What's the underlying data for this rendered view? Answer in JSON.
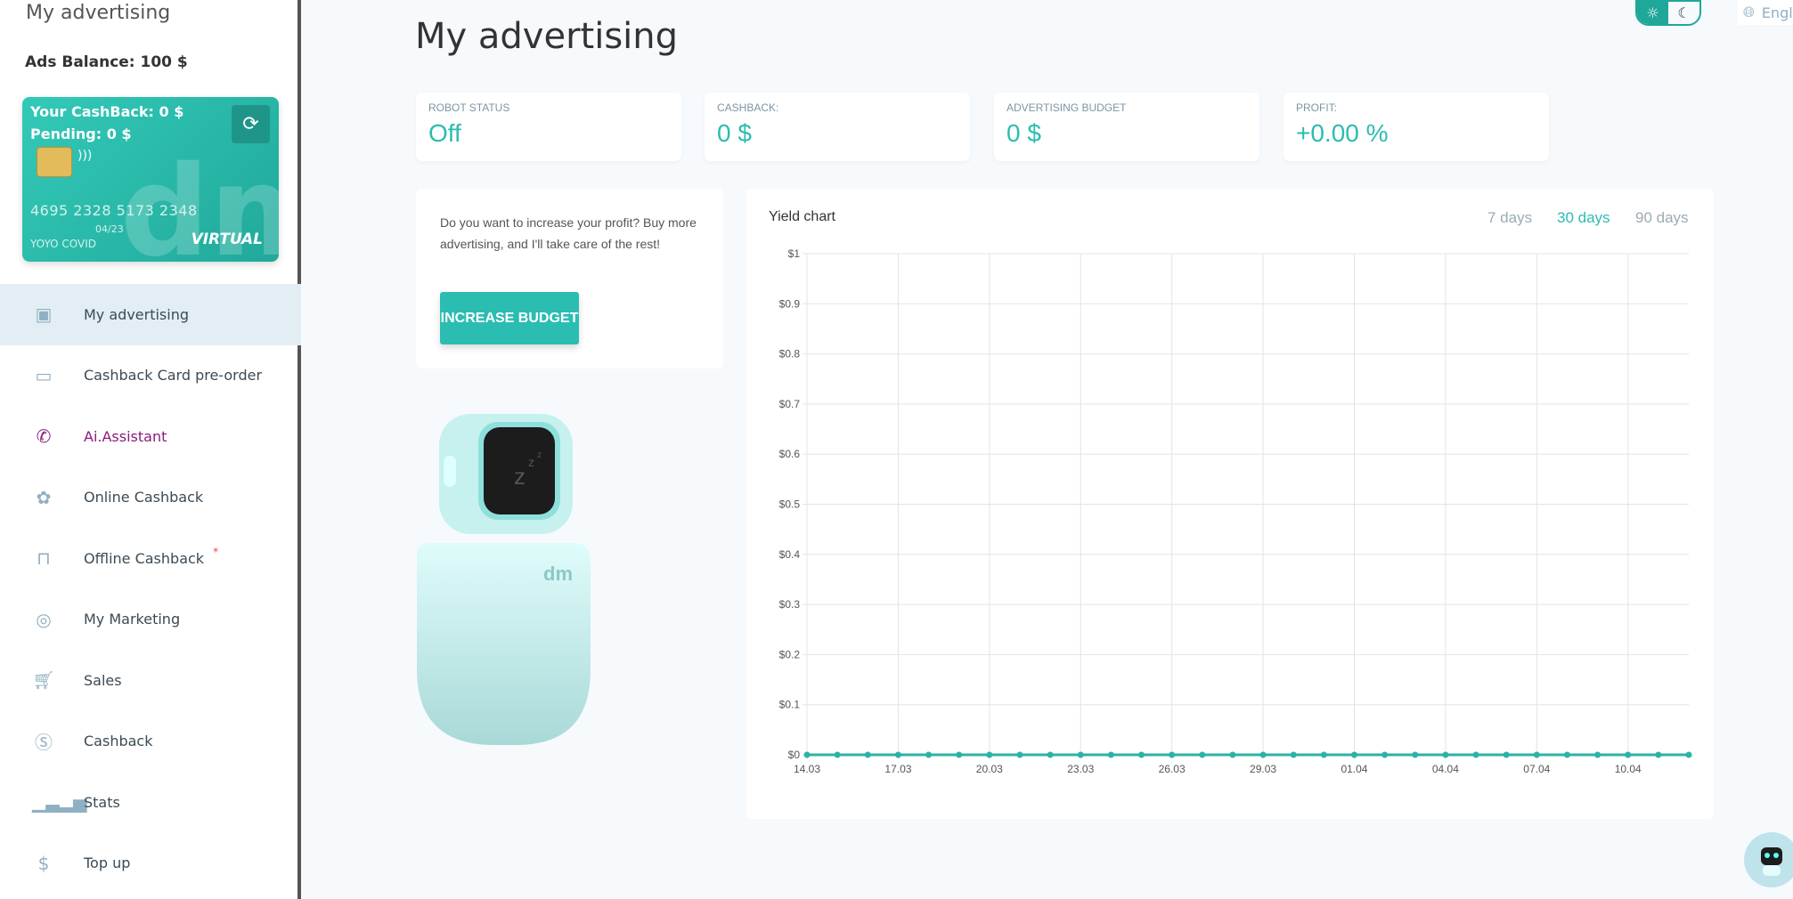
{
  "sidebar": {
    "title": "My advertising",
    "ads_balance": "Ads Balance: 100 $",
    "card": {
      "cashback": "Your CashBack: 0 $",
      "pending": "Pending: 0 $",
      "number": "4695 2328 5173 2348",
      "expiry": "04/23",
      "holder": "YOYO COVID",
      "type": "VIRTUAL",
      "logo": "dm"
    },
    "items": [
      {
        "label": "My advertising",
        "icon": "id-badge-icon"
      },
      {
        "label": "Cashback Card pre-order",
        "icon": "credit-card-icon"
      },
      {
        "label": "Ai.Assistant",
        "icon": "phone-icon"
      },
      {
        "label": "Online Cashback",
        "icon": "percent-badge-icon"
      },
      {
        "label": "Offline Cashback",
        "icon": "shopping-bag-icon",
        "badge": "*"
      },
      {
        "label": "My Marketing",
        "icon": "target-icon"
      },
      {
        "label": "Sales",
        "icon": "cart-icon"
      },
      {
        "label": "Cashback",
        "icon": "dollar-circle-icon"
      },
      {
        "label": "Stats",
        "icon": "bar-chart-icon"
      },
      {
        "label": "Top up",
        "icon": "dollar-icon"
      }
    ]
  },
  "header": {
    "title": "My advertising",
    "language": "English"
  },
  "stats": [
    {
      "label": "ROBOT STATUS",
      "value": "Off"
    },
    {
      "label": "CASHBACK:",
      "value": "0 $"
    },
    {
      "label": "ADVERTISING BUDGET",
      "value": "0 $"
    },
    {
      "label": "PROFIT:",
      "value": "+0.00 %"
    }
  ],
  "promo": {
    "text": "Do you want to increase your profit? Buy more advertising, and I'll take care of the rest!",
    "button": "INCREASE BUDGET"
  },
  "colors": {
    "accent": "#2bbdb2",
    "ai": "#8a1b7e"
  },
  "chart_data": {
    "type": "line",
    "title": "Yield chart",
    "ranges": [
      "7 days",
      "30 days",
      "90 days"
    ],
    "active_range": "30 days",
    "x": [
      "14.03",
      "15.03",
      "16.03",
      "17.03",
      "18.03",
      "19.03",
      "20.03",
      "21.03",
      "22.03",
      "23.03",
      "24.03",
      "25.03",
      "26.03",
      "27.03",
      "28.03",
      "29.03",
      "30.03",
      "31.03",
      "01.04",
      "02.04",
      "03.04",
      "04.04",
      "05.04",
      "06.04",
      "07.04",
      "08.04",
      "09.04",
      "10.04",
      "11.04",
      "12.04"
    ],
    "x_tick_labels": [
      "14.03",
      "17.03",
      "20.03",
      "23.03",
      "26.03",
      "29.03",
      "01.04",
      "04.04",
      "07.04",
      "10.04"
    ],
    "series": [
      {
        "name": "Yield",
        "values": [
          0,
          0,
          0,
          0,
          0,
          0,
          0,
          0,
          0,
          0,
          0,
          0,
          0,
          0,
          0,
          0,
          0,
          0,
          0,
          0,
          0,
          0,
          0,
          0,
          0,
          0,
          0,
          0,
          0,
          0
        ]
      }
    ],
    "y_ticks": [
      "$0",
      "$0.1",
      "$0.2",
      "$0.3",
      "$0.4",
      "$0.5",
      "$0.6",
      "$0.7",
      "$0.8",
      "$0.9",
      "$1"
    ],
    "ylim": [
      0,
      1
    ],
    "grid": true
  }
}
